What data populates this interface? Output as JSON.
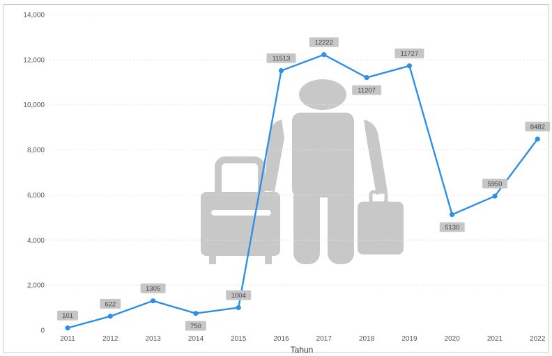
{
  "colors": {
    "line": "#2e8fe8",
    "grid": "#e4e4e4",
    "label_bg": "#c6c6c6",
    "icon": "#c8c8c8"
  },
  "background_icon": "traveler-with-luggage-icon",
  "chart_data": {
    "type": "line",
    "title": "",
    "xlabel": "Tahun",
    "ylabel": "",
    "ylim": [
      0,
      14000
    ],
    "yticks": [
      "0",
      "2,000",
      "4,000",
      "6,000",
      "8,000",
      "10,000",
      "12,000",
      "14,000"
    ],
    "yticks_values": [
      0,
      2000,
      4000,
      6000,
      8000,
      10000,
      12000,
      14000
    ],
    "grid": true,
    "categories": [
      "2011",
      "2012",
      "2013",
      "2014",
      "2015",
      "2016",
      "2017",
      "2018",
      "2019",
      "2020",
      "2021",
      "2022"
    ],
    "series": [
      {
        "values": [
          101,
          622,
          1305,
          750,
          1004,
          11513,
          12222,
          11207,
          11727,
          5130,
          5950,
          8482
        ],
        "labels": [
          "101",
          "622",
          "1305",
          "750",
          "1004",
          "11513",
          "12222",
          "11207",
          "11727",
          "5130",
          "5950",
          "8482"
        ],
        "label_position": [
          "above",
          "above",
          "above",
          "below",
          "above",
          "above",
          "above",
          "below",
          "above",
          "below",
          "above",
          "above"
        ]
      }
    ]
  }
}
